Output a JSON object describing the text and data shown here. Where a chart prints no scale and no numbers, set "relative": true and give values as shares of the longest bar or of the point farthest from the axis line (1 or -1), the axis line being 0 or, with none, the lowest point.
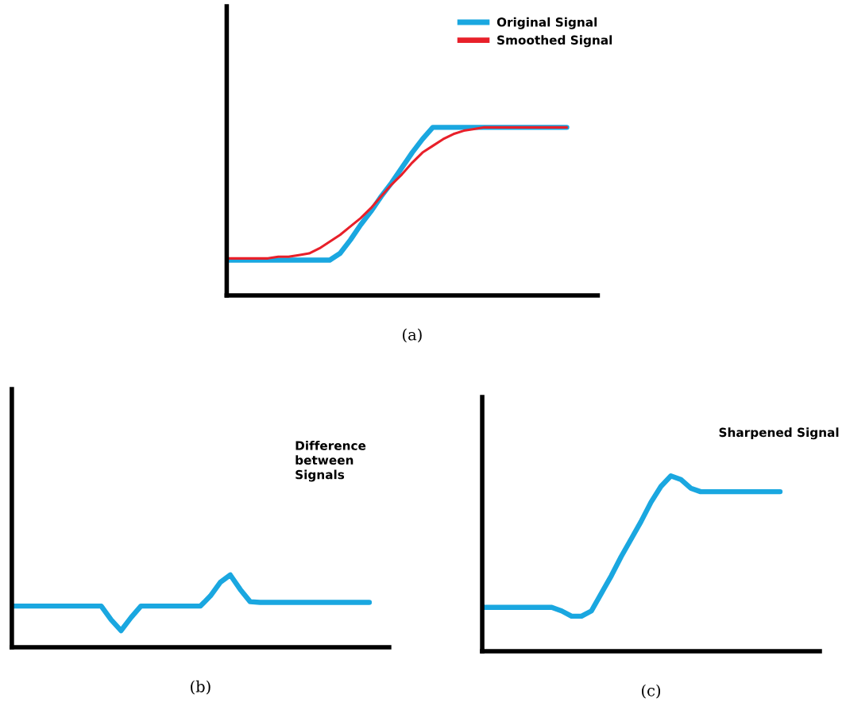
{
  "chart_data": [
    {
      "type": "line",
      "relative": true,
      "xlabel": "(a)",
      "legend": "top right",
      "marker": "none",
      "line_style": "solid",
      "categories": [
        null,
        null,
        null,
        null,
        null,
        null,
        null,
        null,
        null,
        null,
        null,
        null,
        null,
        null,
        null,
        null,
        null,
        null,
        null,
        null,
        null,
        null,
        null,
        null,
        null,
        null,
        null,
        null,
        null,
        null,
        null,
        null,
        null,
        null,
        null,
        null
      ],
      "series": [
        {
          "name": "Original Signal",
          "color": "#1aa7e0",
          "values": [
            0.21,
            0.21,
            0.21,
            0.21,
            0.21,
            0.21,
            0.21,
            0.21,
            0.21,
            0.21,
            0.21,
            0.25,
            0.33,
            0.42,
            0.5,
            0.59,
            0.67,
            0.76,
            0.85,
            0.93,
            1,
            1,
            1,
            1,
            1,
            1,
            1,
            1,
            1,
            1,
            1,
            1,
            1,
            1,
            null,
            null
          ]
        },
        {
          "name": "Smoothed Signal",
          "color": "#e8202a",
          "values": [
            0.22,
            0.22,
            0.22,
            0.22,
            0.22,
            0.23,
            0.23,
            0.24,
            0.25,
            0.28,
            0.32,
            0.36,
            0.41,
            0.46,
            0.52,
            0.59,
            0.66,
            0.72,
            0.79,
            0.85,
            0.89,
            0.93,
            0.96,
            0.98,
            0.99,
            1,
            1,
            1,
            1,
            1,
            1,
            1,
            1,
            1,
            null,
            null
          ]
        }
      ]
    },
    {
      "type": "line",
      "relative": true,
      "xlabel": "(b)",
      "marker": "none",
      "line_style": "solid",
      "annotations": [
        "Difference\nbetween\nSignals"
      ],
      "categories": [
        null,
        null,
        null,
        null,
        null,
        null,
        null,
        null,
        null,
        null,
        null,
        null,
        null,
        null,
        null,
        null,
        null,
        null,
        null,
        null,
        null,
        null,
        null,
        null,
        null,
        null,
        null,
        null,
        null,
        null,
        null,
        null,
        null,
        null,
        null,
        null,
        null,
        null
      ],
      "series": [
        {
          "color": "#1aa7e0",
          "values": [
            0.57,
            0.57,
            0.57,
            0.57,
            0.57,
            0.57,
            0.57,
            0.57,
            0.57,
            0.57,
            0.38,
            0.23,
            0.41,
            0.57,
            0.57,
            0.57,
            0.57,
            0.57,
            0.57,
            0.57,
            0.71,
            0.9,
            1,
            0.8,
            0.63,
            0.62,
            0.62,
            0.62,
            0.62,
            0.62,
            0.62,
            0.62,
            0.62,
            0.62,
            0.62,
            0.62,
            0.62,
            null
          ]
        }
      ]
    },
    {
      "type": "line",
      "relative": true,
      "xlabel": "(c)",
      "marker": "none",
      "line_style": "solid",
      "annotations": [
        "Sharpened Signal"
      ],
      "categories": [
        null,
        null,
        null,
        null,
        null,
        null,
        null,
        null,
        null,
        null,
        null,
        null,
        null,
        null,
        null,
        null,
        null,
        null,
        null,
        null,
        null,
        null,
        null,
        null,
        null,
        null,
        null,
        null,
        null,
        null,
        null,
        null,
        null,
        null
      ],
      "series": [
        {
          "color": "#1aa7e0",
          "values": [
            0.25,
            0.25,
            0.25,
            0.25,
            0.25,
            0.25,
            0.25,
            0.25,
            0.23,
            0.2,
            0.2,
            0.23,
            0.33,
            0.43,
            0.54,
            0.64,
            0.74,
            0.85,
            0.94,
            1,
            0.98,
            0.93,
            0.91,
            0.91,
            0.91,
            0.91,
            0.91,
            0.91,
            0.91,
            0.91,
            0.91,
            null,
            null,
            null
          ]
        }
      ]
    }
  ]
}
